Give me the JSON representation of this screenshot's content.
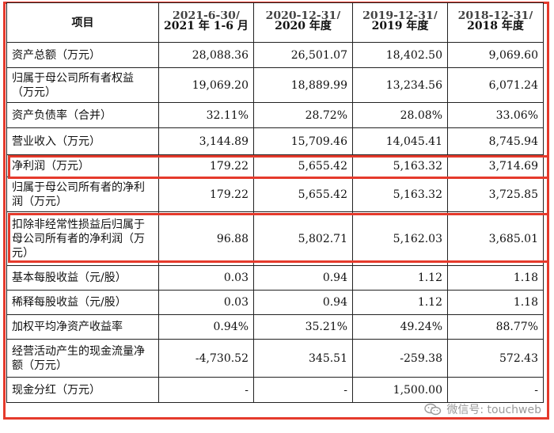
{
  "header": {
    "item": "项目",
    "cols": [
      {
        "line1": "2021-6-30/",
        "line2": "2021 年 1-6 月"
      },
      {
        "line1": "2020-12-31/",
        "line2": "2020 年度"
      },
      {
        "line1": "2019-12-31/",
        "line2": "2019 年度"
      },
      {
        "line1": "2018-12-31/",
        "line2": "2018 年度"
      }
    ]
  },
  "rows": [
    {
      "label": "资产总额（万元）",
      "values": [
        "28,088.36",
        "26,501.07",
        "18,402.50",
        "9,069.60"
      ]
    },
    {
      "label": "归属于母公司所有者权益（万元）",
      "values": [
        "19,069.20",
        "18,889.99",
        "13,234.56",
        "6,071.24"
      ]
    },
    {
      "label": "资产负债率（合并）",
      "values": [
        "32.11%",
        "28.72%",
        "28.08%",
        "33.06%"
      ]
    },
    {
      "label": "营业收入（万元）",
      "values": [
        "3,144.89",
        "15,709.46",
        "14,045.41",
        "8,745.94"
      ]
    },
    {
      "label": "净利润（万元）",
      "values": [
        "179.22",
        "5,655.42",
        "5,163.32",
        "3,714.69"
      ]
    },
    {
      "label": "归属于母公司所有者的净利润（万元）",
      "values": [
        "179.22",
        "5,655.42",
        "5,163.32",
        "3,725.85"
      ]
    },
    {
      "label": "扣除非经常性损益后归属于母公司所有者的净利润（万元）",
      "values": [
        "96.88",
        "5,802.71",
        "5,162.03",
        "3,685.01"
      ]
    },
    {
      "label": "基本每股收益（元/股）",
      "values": [
        "0.03",
        "0.94",
        "1.12",
        "1.18"
      ]
    },
    {
      "label": "稀释每股收益（元/股）",
      "values": [
        "0.03",
        "0.94",
        "1.12",
        "1.18"
      ]
    },
    {
      "label": "加权平均净资产收益率",
      "values": [
        "0.94%",
        "35.21%",
        "49.24%",
        "88.77%"
      ]
    },
    {
      "label": "经营活动产生的现金流量净额（万元）",
      "values": [
        "-4,730.52",
        "345.51",
        "-259.38",
        "572.43"
      ]
    },
    {
      "label": "现金分红（万元）",
      "values": [
        "-",
        "-",
        "1,500.00",
        "-"
      ]
    }
  ],
  "watermark": {
    "text": "微信号: touchweb",
    "icon": "wechat-icon"
  },
  "colors": {
    "highlight": "#e53a2c",
    "border": "#222222"
  }
}
